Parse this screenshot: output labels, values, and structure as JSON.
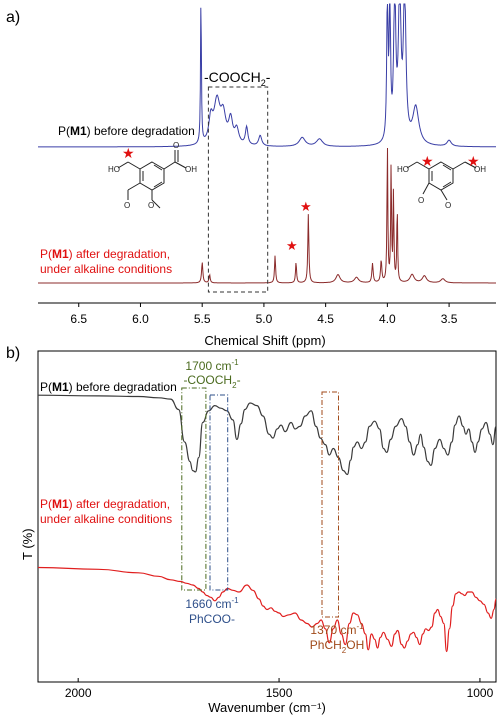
{
  "panels": {
    "a_label": "a)",
    "b_label": "b)"
  },
  "colors": {
    "nmr_before": "#3a3fa6",
    "nmr_after": "#8b2b2b",
    "ir_before": "#3a3a3a",
    "ir_after": "#e01e1e",
    "star": "#e01010",
    "box_green": "#4a6a1e",
    "box_blue": "#2e4f8a",
    "box_brown": "#a04a1a"
  },
  "chart_data": [
    {
      "type": "line",
      "title": "",
      "xlabel": "Chemical Shift (ppm)",
      "ylabel": "",
      "xlim": [
        6.83,
        3.12
      ],
      "x_reversed": true,
      "xticks": [
        "6.5",
        "6.0",
        "5.5",
        "5.0",
        "4.5",
        "4.0",
        "3.5"
      ],
      "grid": false,
      "annotations": {
        "box_label": "-COOCH",
        "box_label_sub": "2",
        "box_label_tail": "-",
        "box_range_ppm": [
          5.45,
          4.97
        ]
      },
      "series": [
        {
          "name": "P(M1) before degradation",
          "label_parts": [
            "P(",
            "M1",
            ") before degradation"
          ],
          "offset": "upper",
          "peaks": [
            {
              "x": 5.51,
              "h": 1.0,
              "w": 0.004
            },
            {
              "x": 5.43,
              "h": 0.16,
              "w": 0.02
            },
            {
              "x": 5.38,
              "h": 0.28,
              "w": 0.03
            },
            {
              "x": 5.33,
              "h": 0.18,
              "w": 0.025
            },
            {
              "x": 5.27,
              "h": 0.16,
              "w": 0.02
            },
            {
              "x": 5.22,
              "h": 0.1,
              "w": 0.02
            },
            {
              "x": 5.14,
              "h": 0.12,
              "w": 0.012
            },
            {
              "x": 5.03,
              "h": 0.07,
              "w": 0.015
            },
            {
              "x": 4.69,
              "h": 0.06,
              "w": 0.03
            },
            {
              "x": 4.55,
              "h": 0.05,
              "w": 0.03
            },
            {
              "x": 4.0,
              "h": 1.0,
              "w": 0.006
            },
            {
              "x": 3.98,
              "h": 1.0,
              "w": 0.006
            },
            {
              "x": 3.94,
              "h": 1.0,
              "w": 0.01
            },
            {
              "x": 3.9,
              "h": 1.0,
              "w": 0.012
            },
            {
              "x": 3.86,
              "h": 1.0,
              "w": 0.012
            },
            {
              "x": 3.77,
              "h": 0.25,
              "w": 0.03
            },
            {
              "x": 3.5,
              "h": 0.04,
              "w": 0.02
            }
          ]
        },
        {
          "name": "P(M1) after degradation, under alkaline conditions",
          "label_lines": [
            [
              "P(",
              "M1",
              ") after degradation,"
            ],
            [
              "under alkaline conditions"
            ]
          ],
          "offset": "lower",
          "peaks": [
            {
              "x": 5.5,
              "h": 0.15,
              "w": 0.006
            },
            {
              "x": 5.44,
              "h": 0.06,
              "w": 0.006
            },
            {
              "x": 4.91,
              "h": 0.2,
              "w": 0.005
            },
            {
              "x": 4.74,
              "h": 0.15,
              "w": 0.005
            },
            {
              "x": 4.64,
              "h": 0.5,
              "w": 0.005
            },
            {
              "x": 4.4,
              "h": 0.06,
              "w": 0.02
            },
            {
              "x": 4.25,
              "h": 0.04,
              "w": 0.02
            },
            {
              "x": 4.12,
              "h": 0.14,
              "w": 0.006
            },
            {
              "x": 4.05,
              "h": 0.16,
              "w": 0.006
            },
            {
              "x": 4.0,
              "h": 1.0,
              "w": 0.004
            },
            {
              "x": 3.97,
              "h": 0.85,
              "w": 0.004
            },
            {
              "x": 3.95,
              "h": 0.65,
              "w": 0.004
            },
            {
              "x": 3.92,
              "h": 0.55,
              "w": 0.004
            },
            {
              "x": 3.8,
              "h": 0.06,
              "w": 0.02
            },
            {
              "x": 3.7,
              "h": 0.05,
              "w": 0.02
            },
            {
              "x": 3.55,
              "h": 0.03,
              "w": 0.02
            }
          ]
        }
      ],
      "structures": {
        "left": {
          "labels": [
            "HO",
            "OH",
            "O",
            "O",
            "O"
          ]
        },
        "right": {
          "labels": [
            "HO",
            "OH",
            "O",
            "O"
          ]
        }
      }
    },
    {
      "type": "line",
      "title": "",
      "xlabel": "Wavenumber (cm⁻¹)",
      "ylabel": "T (%)",
      "xlim": [
        2100,
        960
      ],
      "x_reversed": true,
      "xticks": [
        "2000",
        "1500",
        "1000"
      ],
      "grid": false,
      "annotations": [
        {
          "line1": "1700 cm",
          "sup": "-1",
          "line2": "-COOCH",
          "sub": "2",
          "tail": "-",
          "range": [
            1742,
            1682
          ],
          "color_key": "box_green"
        },
        {
          "line1": "1660 cm",
          "sup": "-1",
          "line2": "PhCOO-",
          "range": [
            1672,
            1628
          ],
          "color_key": "box_blue"
        },
        {
          "line1": "1370 cm",
          "sup": "-1",
          "line2": "PhCH",
          "sub": "2",
          "tail": "OH",
          "range": [
            1393,
            1352
          ],
          "color_key": "box_brown"
        }
      ],
      "series": [
        {
          "name": "P(M1) before degradation",
          "label_parts": [
            "P(",
            "M1",
            ") before degradation"
          ],
          "baseline": 0.95,
          "points": [
            [
              2100,
              0.96
            ],
            [
              1950,
              0.955
            ],
            [
              1850,
              0.95
            ],
            [
              1800,
              0.94
            ],
            [
              1770,
              0.93
            ],
            [
              1750,
              0.85
            ],
            [
              1735,
              0.6
            ],
            [
              1722,
              0.45
            ],
            [
              1715,
              0.38
            ],
            [
              1708,
              0.37
            ],
            [
              1700,
              0.48
            ],
            [
              1690,
              0.75
            ],
            [
              1675,
              0.84
            ],
            [
              1660,
              0.88
            ],
            [
              1645,
              0.86
            ],
            [
              1630,
              0.84
            ],
            [
              1615,
              0.77
            ],
            [
              1605,
              0.62
            ],
            [
              1595,
              0.74
            ],
            [
              1585,
              0.85
            ],
            [
              1572,
              0.9
            ],
            [
              1555,
              0.88
            ],
            [
              1540,
              0.8
            ],
            [
              1525,
              0.66
            ],
            [
              1515,
              0.63
            ],
            [
              1505,
              0.7
            ],
            [
              1495,
              0.73
            ],
            [
              1485,
              0.68
            ],
            [
              1470,
              0.75
            ],
            [
              1460,
              0.7
            ],
            [
              1448,
              0.72
            ],
            [
              1435,
              0.8
            ],
            [
              1420,
              0.84
            ],
            [
              1408,
              0.72
            ],
            [
              1397,
              0.63
            ],
            [
              1385,
              0.58
            ],
            [
              1375,
              0.5
            ],
            [
              1365,
              0.55
            ],
            [
              1352,
              0.48
            ],
            [
              1340,
              0.38
            ],
            [
              1330,
              0.35
            ],
            [
              1322,
              0.46
            ],
            [
              1315,
              0.56
            ],
            [
              1305,
              0.6
            ],
            [
              1295,
              0.55
            ],
            [
              1285,
              0.6
            ],
            [
              1275,
              0.72
            ],
            [
              1262,
              0.76
            ],
            [
              1250,
              0.7
            ],
            [
              1240,
              0.55
            ],
            [
              1232,
              0.52
            ],
            [
              1222,
              0.62
            ],
            [
              1210,
              0.72
            ],
            [
              1195,
              0.78
            ],
            [
              1185,
              0.72
            ],
            [
              1175,
              0.6
            ],
            [
              1165,
              0.5
            ],
            [
              1155,
              0.58
            ],
            [
              1148,
              0.66
            ],
            [
              1140,
              0.56
            ],
            [
              1130,
              0.45
            ],
            [
              1122,
              0.42
            ],
            [
              1112,
              0.55
            ],
            [
              1100,
              0.62
            ],
            [
              1090,
              0.55
            ],
            [
              1080,
              0.5
            ],
            [
              1070,
              0.6
            ],
            [
              1062,
              0.73
            ],
            [
              1052,
              0.8
            ],
            [
              1042,
              0.72
            ],
            [
              1035,
              0.66
            ],
            [
              1028,
              0.7
            ],
            [
              1020,
              0.6
            ],
            [
              1012,
              0.52
            ],
            [
              1005,
              0.6
            ],
            [
              995,
              0.7
            ],
            [
              985,
              0.75
            ],
            [
              975,
              0.66
            ],
            [
              968,
              0.58
            ],
            [
              960,
              0.72
            ]
          ]
        },
        {
          "name": "P(M1) after degradation, under alkaline conditions",
          "label_lines": [
            [
              "P(",
              "M1",
              ") after degradation,"
            ],
            [
              "under alkaline conditions"
            ]
          ],
          "points": [
            [
              2100,
              0.5
            ],
            [
              1950,
              0.49
            ],
            [
              1850,
              0.47
            ],
            [
              1800,
              0.45
            ],
            [
              1770,
              0.43
            ],
            [
              1745,
              0.42
            ],
            [
              1730,
              0.41
            ],
            [
              1715,
              0.4
            ],
            [
              1700,
              0.38
            ],
            [
              1690,
              0.36
            ],
            [
              1680,
              0.34
            ],
            [
              1670,
              0.33
            ],
            [
              1660,
              0.31
            ],
            [
              1650,
              0.33
            ],
            [
              1640,
              0.36
            ],
            [
              1628,
              0.38
            ],
            [
              1615,
              0.37
            ],
            [
              1600,
              0.36
            ],
            [
              1580,
              0.4
            ],
            [
              1565,
              0.37
            ],
            [
              1550,
              0.32
            ],
            [
              1540,
              0.28
            ],
            [
              1530,
              0.26
            ],
            [
              1520,
              0.27
            ],
            [
              1510,
              0.25
            ],
            [
              1500,
              0.24
            ],
            [
              1490,
              0.22
            ],
            [
              1475,
              0.23
            ],
            [
              1460,
              0.24
            ],
            [
              1445,
              0.2
            ],
            [
              1430,
              0.18
            ],
            [
              1418,
              0.16
            ],
            [
              1405,
              0.18
            ],
            [
              1395,
              0.2
            ],
            [
              1385,
              0.15
            ],
            [
              1375,
              0.07
            ],
            [
              1365,
              0.15
            ],
            [
              1355,
              0.2
            ],
            [
              1345,
              0.12
            ],
            [
              1335,
              0.06
            ],
            [
              1325,
              0.18
            ],
            [
              1315,
              0.24
            ],
            [
              1305,
              0.23
            ],
            [
              1295,
              0.18
            ],
            [
              1285,
              0.12
            ],
            [
              1278,
              0.03
            ],
            [
              1270,
              0.12
            ],
            [
              1262,
              0.09
            ],
            [
              1255,
              0.04
            ],
            [
              1248,
              0.1
            ],
            [
              1240,
              0.13
            ],
            [
              1230,
              0.09
            ],
            [
              1220,
              0.05
            ],
            [
              1212,
              0.12
            ],
            [
              1205,
              0.14
            ],
            [
              1195,
              0.06
            ],
            [
              1188,
              0.04
            ],
            [
              1180,
              0.08
            ],
            [
              1172,
              0.12
            ],
            [
              1165,
              0.13
            ],
            [
              1158,
              0.1
            ],
            [
              1150,
              0.06
            ],
            [
              1142,
              0.12
            ],
            [
              1135,
              0.15
            ],
            [
              1128,
              0.14
            ],
            [
              1120,
              0.16
            ],
            [
              1112,
              0.24
            ],
            [
              1105,
              0.26
            ],
            [
              1098,
              0.22
            ],
            [
              1090,
              0.18
            ],
            [
              1083,
              0.02
            ],
            [
              1076,
              0.15
            ],
            [
              1068,
              0.28
            ],
            [
              1060,
              0.35
            ],
            [
              1052,
              0.36
            ],
            [
              1045,
              0.35
            ],
            [
              1038,
              0.34
            ],
            [
              1030,
              0.36
            ],
            [
              1020,
              0.36
            ],
            [
              1010,
              0.33
            ],
            [
              1000,
              0.31
            ],
            [
              990,
              0.29
            ],
            [
              980,
              0.24
            ],
            [
              972,
              0.21
            ],
            [
              965,
              0.26
            ],
            [
              960,
              0.32
            ]
          ]
        }
      ]
    }
  ]
}
